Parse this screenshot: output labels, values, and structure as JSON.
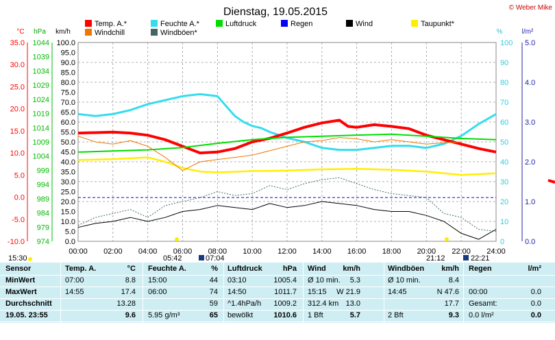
{
  "title": "Dienstag, 19.05.2015",
  "copyright": "© Weber Mike",
  "axis_units": {
    "temp": "°C",
    "press": "hPa",
    "wind": "km/h",
    "hum": "%",
    "rain": "l/m²"
  },
  "legend": [
    {
      "label": "Temp. A.*",
      "color": "#ff0000"
    },
    {
      "label": "Feuchte A.*",
      "color": "#33ddee"
    },
    {
      "label": "Luftdruck",
      "color": "#00dd00"
    },
    {
      "label": "Regen",
      "color": "#0000ff"
    },
    {
      "label": "Wind",
      "color": "#000000"
    },
    {
      "label": "Taupunkt*",
      "color": "#ffee00"
    },
    {
      "label": "Windchill",
      "color": "#ee7700"
    },
    {
      "label": "Windböen*",
      "color": "#446666"
    }
  ],
  "chart_data": {
    "type": "line",
    "x_ticks": [
      "00:00",
      "02:00",
      "04:00",
      "06:00",
      "08:00",
      "10:00",
      "12:00",
      "14:00",
      "16:00",
      "18:00",
      "20:00",
      "22:00",
      "24:00"
    ],
    "axes": {
      "temp": {
        "ticks": [
          "35.0",
          "30.0",
          "25.0",
          "20.0",
          "15.0",
          "10.0",
          "5.0",
          "0.0",
          "-5.0",
          "-10.0"
        ],
        "range": [
          -10,
          35
        ],
        "color": "#ff0000"
      },
      "press": {
        "ticks": [
          "1044",
          "1039",
          "1034",
          "1029",
          "1024",
          "1019",
          "1014",
          "1009",
          "1004",
          "999",
          "994",
          "989",
          "984",
          "979",
          "974"
        ],
        "range": [
          974,
          1044
        ],
        "color": "#00cc00"
      },
      "wind": {
        "ticks": [
          "100.0",
          "95.0",
          "90.0",
          "85.0",
          "80.0",
          "75.0",
          "70.0",
          "65.0",
          "60.0",
          "55.0",
          "50.0",
          "45.0",
          "40.0",
          "35.0",
          "30.0",
          "25.0",
          "20.0",
          "15.0",
          "10.0",
          "5.0",
          "0.0"
        ],
        "range": [
          0,
          100
        ]
      },
      "hum": {
        "ticks": [
          "100",
          "90",
          "80",
          "70",
          "60",
          "50",
          "40",
          "30",
          "20",
          "10",
          "0"
        ],
        "range": [
          0,
          100
        ],
        "color": "#33ccdd"
      },
      "rain": {
        "ticks": [
          "5.0",
          "4.0",
          "3.0",
          "2.0",
          "1.0",
          "0.0"
        ],
        "range": [
          0,
          5
        ],
        "color": "#2222aa"
      }
    },
    "series": [
      {
        "name": "Feuchte A.*",
        "axis": "hum",
        "color": "#33ddee",
        "width": 3,
        "x": [
          0,
          1,
          2,
          3,
          4,
          5,
          6,
          7,
          8,
          8.5,
          9,
          9.5,
          10,
          10.5,
          11,
          12,
          13,
          14,
          15,
          16,
          17,
          18,
          19,
          20,
          21,
          22,
          23,
          24
        ],
        "y": [
          64,
          63,
          64,
          66,
          69,
          71,
          73,
          74,
          73,
          68,
          63,
          60,
          58,
          57,
          55,
          52,
          50,
          47,
          46,
          46,
          47,
          48,
          48,
          47,
          49,
          53,
          59,
          64
        ]
      },
      {
        "name": "Temp. A.*",
        "axis": "temp",
        "color": "#ff0000",
        "width": 4,
        "x": [
          0,
          1,
          2,
          3,
          4,
          5,
          6,
          7,
          8,
          9,
          10,
          11,
          12,
          13,
          14,
          15,
          15.5,
          16,
          17,
          18,
          19,
          20,
          21,
          22,
          23,
          24
        ],
        "y": [
          14.5,
          14.6,
          14.7,
          14.5,
          14.0,
          13.0,
          11.5,
          10.0,
          10.2,
          11.0,
          12.5,
          13.3,
          14.5,
          15.8,
          16.8,
          17.4,
          16.0,
          15.8,
          16.4,
          16.0,
          15.5,
          14.0,
          13.0,
          12.0,
          11.0,
          10.2
        ]
      },
      {
        "name": "Luftdruck",
        "axis": "press",
        "color": "#00dd00",
        "width": 2,
        "x": [
          0,
          2,
          4,
          6,
          8,
          10,
          12,
          14,
          16,
          18,
          20,
          22,
          24
        ],
        "y": [
          1005.4,
          1005.8,
          1006.2,
          1007.0,
          1008.5,
          1009.8,
          1010.6,
          1011.0,
          1011.4,
          1011.7,
          1011.0,
          1010.2,
          1009.8
        ]
      },
      {
        "name": "Taupunkt*",
        "axis": "temp",
        "color": "#ffee00",
        "width": 2.5,
        "x": [
          0,
          2,
          4,
          5,
          6,
          7,
          8,
          10,
          12,
          14,
          16,
          18,
          20,
          22,
          24
        ],
        "y": [
          8.4,
          8.6,
          9.0,
          8.0,
          6.6,
          5.8,
          5.6,
          5.9,
          6.0,
          6.3,
          6.4,
          6.2,
          5.8,
          5.0,
          5.4
        ]
      },
      {
        "name": "Windchill",
        "axis": "temp",
        "color": "#ee7700",
        "width": 1,
        "x": [
          0,
          1,
          2,
          3,
          4,
          5,
          5.5,
          6,
          6.5,
          7,
          8,
          9,
          10,
          11,
          12,
          13,
          14,
          15,
          16,
          17,
          18,
          19,
          20,
          21,
          22
        ],
        "y": [
          13.8,
          12.5,
          12.0,
          12.8,
          11.5,
          9.0,
          7.5,
          6.0,
          7.0,
          8.0,
          8.5,
          9.0,
          9.5,
          10.5,
          11.5,
          12.5,
          12.8,
          13.5,
          13.2,
          12.5,
          13.0,
          12.5,
          12.0,
          12.3,
          12.5
        ]
      },
      {
        "name": "Windböen*",
        "axis": "wind",
        "color": "#446666",
        "width": 1,
        "dash": "2,2",
        "x": [
          0,
          1,
          2,
          3,
          4,
          5,
          6,
          7,
          8,
          9,
          10,
          11,
          12,
          13,
          14,
          15,
          16,
          17,
          18,
          19,
          20,
          21,
          22,
          23,
          24
        ],
        "y": [
          8,
          12,
          14,
          16,
          12,
          18,
          20,
          22,
          25,
          23,
          24,
          28,
          26,
          29,
          31,
          32,
          29,
          26,
          24,
          23,
          22,
          14,
          12,
          6,
          5
        ]
      },
      {
        "name": "Wind",
        "axis": "wind",
        "color": "#000000",
        "width": 1,
        "x": [
          0,
          1,
          2,
          3,
          4,
          5,
          6,
          7,
          8,
          9,
          10,
          11,
          12,
          13,
          14,
          15,
          16,
          17,
          18,
          19,
          20,
          21,
          22,
          23,
          24
        ],
        "y": [
          7,
          9,
          10,
          12,
          10,
          12,
          15,
          16,
          18,
          17,
          16,
          19,
          17,
          18,
          20,
          19,
          18,
          16,
          15,
          15,
          13,
          10,
          4,
          1,
          6
        ]
      }
    ],
    "rain_line": {
      "axis": "rain",
      "value": 1.1,
      "color": "#2222cc"
    }
  },
  "sun": {
    "rise_label": "05:42",
    "set_label": "21:12",
    "moonrise_label": "07:04",
    "moonset_label": "22:21",
    "left_label": "15:30"
  },
  "table": {
    "headers": [
      "Sensor",
      "Temp. A.",
      "°C",
      "Feuchte A.",
      "%",
      "Luftdruck",
      "hPa",
      "Wind",
      "km/h",
      "Windböen",
      "km/h",
      "Regen",
      "l/m²"
    ],
    "rows": [
      [
        "MinWert",
        "07:00",
        "8.8",
        "15:00",
        "44",
        "03:10",
        "1005.4",
        "Ø 10 min.",
        "5.3",
        "Ø 10 min.",
        "8.4",
        "",
        ""
      ],
      [
        "MaxWert",
        "14:55",
        "17.4",
        "06:00",
        "74",
        "14:50",
        "1011.7",
        "15:15",
        "W 21.9",
        "14:45",
        "N 47.6",
        "00:00",
        "0.0"
      ],
      [
        "Durchschnitt",
        "",
        "13.28",
        "",
        "59",
        "^1.4hPa/h",
        "1009.2",
        "312.4 km",
        "13.0",
        "",
        "17.7",
        "Gesamt:",
        "0.0"
      ],
      [
        "19.05. 23:55",
        "",
        "9.6",
        "5.95 g/m³",
        "65",
        "bewölkt",
        "1010.6",
        "1 Bft",
        "5.7",
        "2 Bft",
        "9.3",
        "0.0 l/m²",
        "0.0"
      ]
    ]
  }
}
